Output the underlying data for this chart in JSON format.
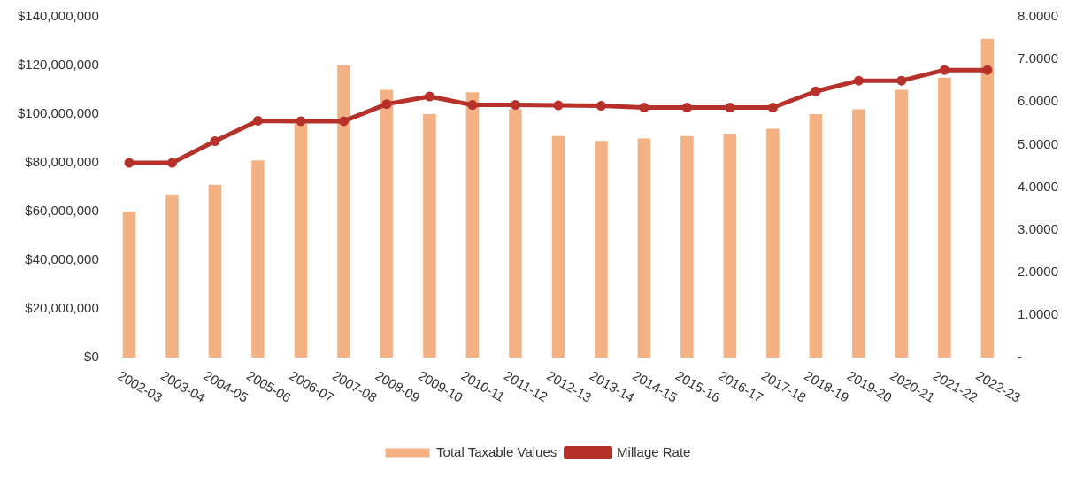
{
  "chart_data": {
    "type": "bar",
    "categories": [
      "2002-03",
      "2003-04",
      "2004-05",
      "2005-06",
      "2006-07",
      "2007-08",
      "2008-09",
      "2009-10",
      "2010-11",
      "2011-12",
      "2012-13",
      "2013-14",
      "2014-15",
      "2015-16",
      "2016-17",
      "2017-18",
      "2018-19",
      "2019-20",
      "2020-21",
      "2021-22",
      "2022-23"
    ],
    "series": [
      {
        "name": "Total Taxable Values",
        "color": "#f4b183",
        "values": [
          60000000,
          67000000,
          71000000,
          81000000,
          96000000,
          120000000,
          110000000,
          100000000,
          109000000,
          102000000,
          91000000,
          89000000,
          90000000,
          91000000,
          92000000,
          94000000,
          100000000,
          102000000,
          110000000,
          115000000,
          131000000
        ]
      },
      {
        "name": "Millage Rate",
        "type": "line",
        "axis": "y2",
        "color": "#b5312a",
        "values": [
          4.57,
          4.57,
          5.08,
          5.56,
          5.55,
          5.55,
          5.95,
          6.13,
          5.93,
          5.93,
          5.92,
          5.91,
          5.87,
          5.87,
          5.87,
          5.87,
          6.25,
          6.5,
          6.5,
          6.75,
          6.75
        ]
      }
    ],
    "ylim": [
      0,
      140000000
    ],
    "yticks": [
      {
        "value": 0,
        "label": "$0"
      },
      {
        "value": 20000000,
        "label": "$20,000,000"
      },
      {
        "value": 40000000,
        "label": "$40,000,000"
      },
      {
        "value": 60000000,
        "label": "$60,000,000"
      },
      {
        "value": 80000000,
        "label": "$80,000,000"
      },
      {
        "value": 100000000,
        "label": "$100,000,000"
      },
      {
        "value": 120000000,
        "label": "$120,000,000"
      },
      {
        "value": 140000000,
        "label": "$140,000,000"
      }
    ],
    "y2lim": [
      0,
      8
    ],
    "y2ticks": [
      {
        "value": 0,
        "label": "-"
      },
      {
        "value": 1,
        "label": "1.0000"
      },
      {
        "value": 2,
        "label": "2.0000"
      },
      {
        "value": 3,
        "label": "3.0000"
      },
      {
        "value": 4,
        "label": "4.0000"
      },
      {
        "value": 5,
        "label": "5.0000"
      },
      {
        "value": 6,
        "label": "6.0000"
      },
      {
        "value": 7,
        "label": "7.0000"
      },
      {
        "value": 8,
        "label": "8.0000"
      }
    ],
    "grid": false,
    "legend": "bottom",
    "marker": "circle"
  }
}
